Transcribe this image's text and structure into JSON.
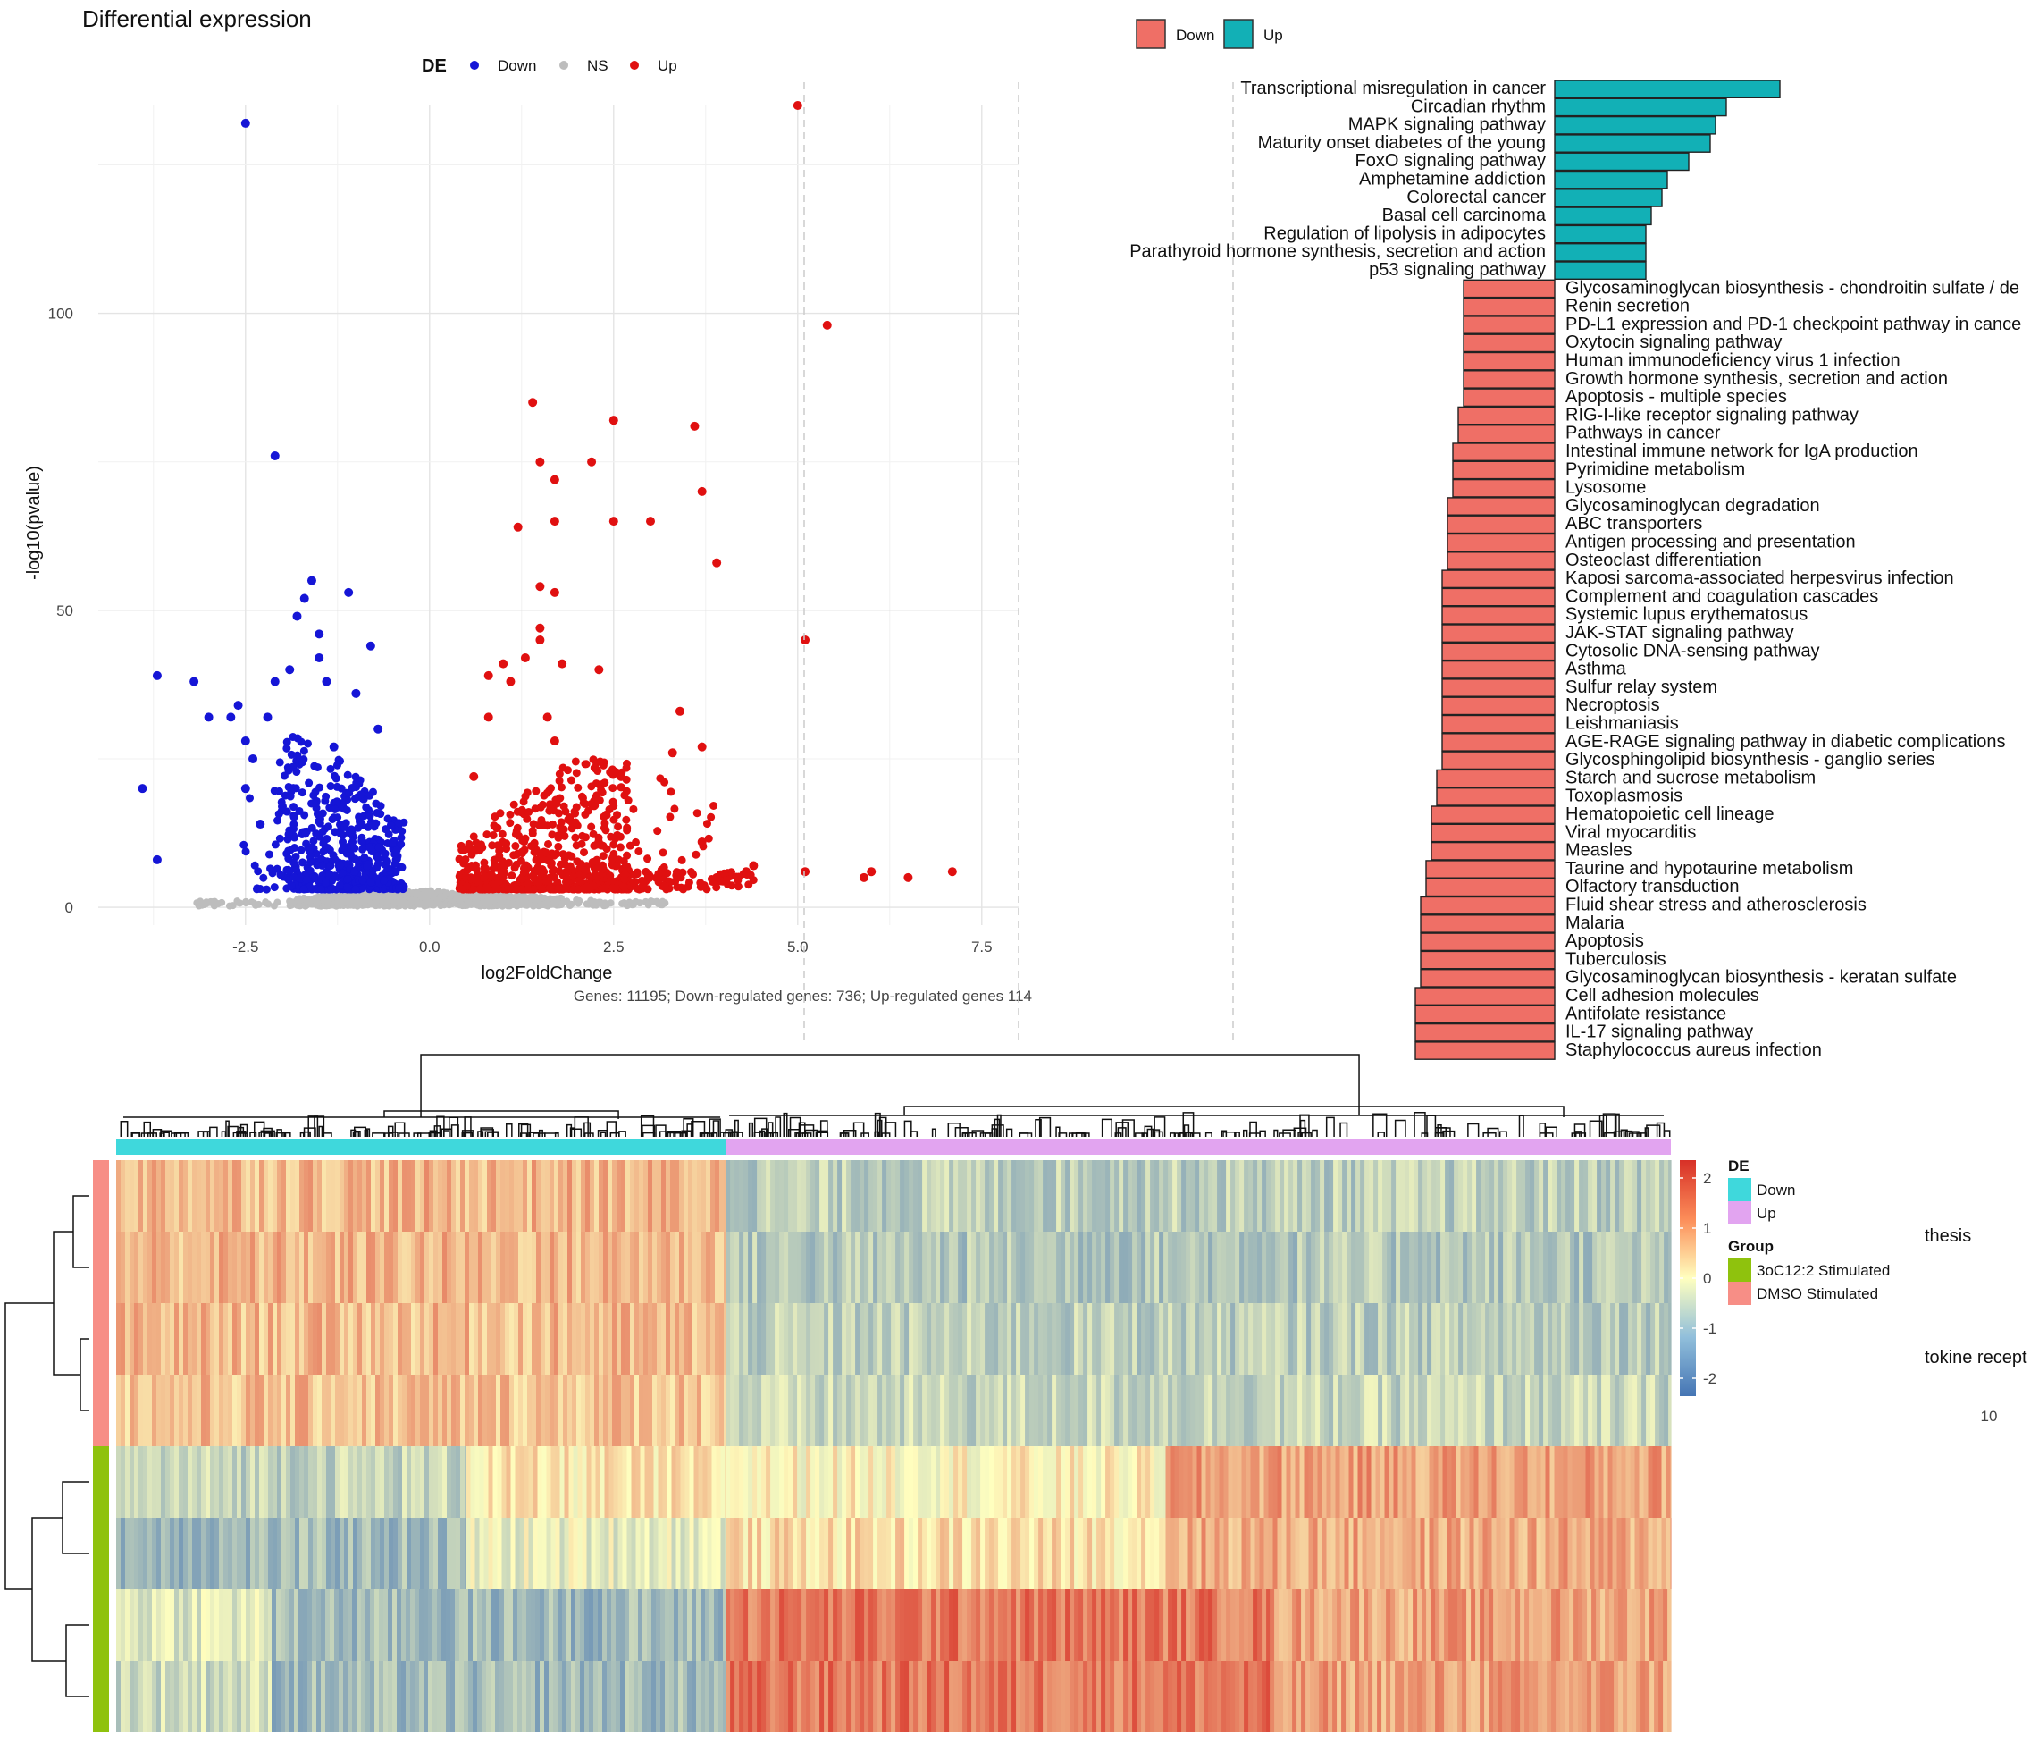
{
  "volcano": {
    "title": "Differential expression",
    "legend_title": "DE",
    "legend": [
      {
        "name": "Down",
        "color": "#1515d6"
      },
      {
        "name": "NS",
        "color": "#bdbdbd"
      },
      {
        "name": "Up",
        "color": "#e01010"
      }
    ],
    "xlabel": "log2FoldChange",
    "ylabel": "-log10(pvalue)",
    "caption": "Genes: 11195; Down-regulated genes: 736; Up-regulated genes 114"
  },
  "pathways": {
    "legend": [
      {
        "name": "Down",
        "color": "#ef6f66"
      },
      {
        "name": "Up",
        "color": "#12b0b6"
      }
    ],
    "axis_tick": "10",
    "right_fragments": [
      "thesis",
      "tokine recept"
    ]
  },
  "heatmap": {
    "legend_de_title": "DE",
    "legend_de": [
      {
        "name": "Down",
        "color": "#3fd8dc"
      },
      {
        "name": "Up",
        "color": "#e2a4f0"
      }
    ],
    "legend_group_title": "Group",
    "legend_group": [
      {
        "name": "3oC12:2 Stimulated",
        "color": "#8fc20d"
      },
      {
        "name": "DMSO Stimulated",
        "color": "#f78e86"
      }
    ],
    "colorbar_ticks": [
      "2",
      "1",
      "0",
      "-1",
      "-2"
    ]
  },
  "chart_data": [
    {
      "type": "scatter",
      "title": "Differential expression",
      "xlabel": "log2FoldChange",
      "ylabel": "-log10(pvalue)",
      "xlim": [
        -4.5,
        8.0
      ],
      "ylim": [
        -3,
        135
      ],
      "xticks": [
        -2.5,
        0.0,
        2.5,
        5.0,
        7.5
      ],
      "xtick_labels": [
        "-2.5",
        "0.0",
        "2.5",
        "5.0",
        "7.5"
      ],
      "yticks": [
        0,
        50,
        100
      ],
      "ytick_labels": [
        "0",
        "50",
        "100"
      ],
      "legend": "top",
      "grid": true,
      "series": [
        {
          "name": "Down",
          "color": "#1515d6",
          "points": [
            [
              -2.5,
              132
            ],
            [
              -2.1,
              76
            ],
            [
              -3.9,
              20
            ],
            [
              -3.7,
              39
            ],
            [
              -3.7,
              8
            ],
            [
              -3.2,
              38
            ],
            [
              -3.0,
              32
            ],
            [
              -2.7,
              32
            ],
            [
              -2.5,
              28
            ],
            [
              -2.5,
              20
            ],
            [
              -2.4,
              25
            ],
            [
              -2.2,
              32
            ],
            [
              -2.1,
              38
            ],
            [
              -1.9,
              40
            ],
            [
              -1.8,
              49
            ],
            [
              -1.7,
              52
            ],
            [
              -1.6,
              55
            ],
            [
              -1.5,
              46
            ],
            [
              -1.5,
              42
            ],
            [
              -1.4,
              38
            ],
            [
              -1.1,
              53
            ],
            [
              -0.8,
              44
            ],
            [
              -1.0,
              36
            ],
            [
              -2.6,
              34
            ],
            [
              -2.3,
              14
            ],
            [
              -2.0,
              17
            ],
            [
              -1.3,
              27
            ],
            [
              -0.7,
              30
            ]
          ]
        },
        {
          "name": "Up",
          "color": "#e01010",
          "points": [
            [
              5.0,
              135
            ],
            [
              5.4,
              98
            ],
            [
              1.4,
              85
            ],
            [
              2.5,
              82
            ],
            [
              3.6,
              81
            ],
            [
              1.5,
              75
            ],
            [
              2.2,
              75
            ],
            [
              1.7,
              72
            ],
            [
              3.7,
              70
            ],
            [
              1.2,
              64
            ],
            [
              1.7,
              65
            ],
            [
              2.5,
              65
            ],
            [
              3.0,
              65
            ],
            [
              3.9,
              58
            ],
            [
              1.5,
              54
            ],
            [
              1.7,
              53
            ],
            [
              5.1,
              45
            ],
            [
              1.5,
              47
            ],
            [
              1.5,
              45
            ],
            [
              2.3,
              40
            ],
            [
              0.8,
              39
            ],
            [
              1.0,
              41
            ],
            [
              1.1,
              38
            ],
            [
              1.3,
              42
            ],
            [
              1.8,
              41
            ],
            [
              3.4,
              33
            ],
            [
              0.8,
              32
            ],
            [
              1.6,
              32
            ],
            [
              3.3,
              26
            ],
            [
              3.7,
              27
            ],
            [
              1.7,
              28
            ],
            [
              0.6,
              22
            ],
            [
              2.6,
              22
            ],
            [
              3.7,
              11
            ],
            [
              4.4,
              7
            ],
            [
              6.5,
              5
            ],
            [
              7.1,
              6
            ],
            [
              6.0,
              6
            ],
            [
              5.9,
              5
            ],
            [
              5.1,
              6
            ],
            [
              4.3,
              6
            ],
            [
              3.9,
              5
            ]
          ]
        },
        {
          "name": "NS",
          "color": "#bdbdbd",
          "points": []
        }
      ]
    },
    {
      "type": "bar",
      "orientation": "horizontal",
      "legend": "top",
      "xlim": [
        -14.5,
        14.5
      ],
      "series": [
        {
          "name": "Up",
          "color": "#12b0b6",
          "items": [
            {
              "label": "Transcriptional misregulation in cancer",
              "value": 4.2
            },
            {
              "label": "Circadian rhythm",
              "value": 3.2
            },
            {
              "label": "MAPK signaling pathway",
              "value": 3.0
            },
            {
              "label": "Maturity onset diabetes of the young",
              "value": 2.9
            },
            {
              "label": "FoxO signaling pathway",
              "value": 2.5
            },
            {
              "label": "Amphetamine addiction",
              "value": 2.1
            },
            {
              "label": "Colorectal cancer",
              "value": 2.0
            },
            {
              "label": "Basal cell carcinoma",
              "value": 1.8
            },
            {
              "label": "Regulation of lipolysis in adipocytes",
              "value": 1.7
            },
            {
              "label": "Parathyroid hormone synthesis, secretion and action",
              "value": 1.7
            },
            {
              "label": "p53 signaling pathway",
              "value": 1.7
            }
          ]
        },
        {
          "name": "Down",
          "color": "#ef6f66",
          "items": [
            {
              "label": "Glycosaminoglycan biosynthesis - chondroitin sulfate / de",
              "value": -1.7
            },
            {
              "label": "Renin secretion",
              "value": -1.7
            },
            {
              "label": "PD-L1 expression and PD-1 checkpoint pathway in cance",
              "value": -1.7
            },
            {
              "label": "Oxytocin signaling pathway",
              "value": -1.7
            },
            {
              "label": "Human immunodeficiency virus 1 infection",
              "value": -1.7
            },
            {
              "label": "Growth hormone synthesis, secretion and action",
              "value": -1.7
            },
            {
              "label": "Apoptosis - multiple species",
              "value": -1.7
            },
            {
              "label": "RIG-I-like receptor signaling pathway",
              "value": -1.8
            },
            {
              "label": "Pathways in cancer",
              "value": -1.8
            },
            {
              "label": "Intestinal immune network for IgA production",
              "value": -1.9
            },
            {
              "label": "Pyrimidine metabolism",
              "value": -1.9
            },
            {
              "label": "Lysosome",
              "value": -1.9
            },
            {
              "label": "Glycosaminoglycan degradation",
              "value": -2.0
            },
            {
              "label": "ABC transporters",
              "value": -2.0
            },
            {
              "label": "Antigen processing and presentation",
              "value": -2.0
            },
            {
              "label": "Osteoclast differentiation",
              "value": -2.0
            },
            {
              "label": "Kaposi sarcoma-associated herpesvirus infection",
              "value": -2.1
            },
            {
              "label": "Complement and coagulation cascades",
              "value": -2.1
            },
            {
              "label": "Systemic lupus erythematosus",
              "value": -2.1
            },
            {
              "label": "JAK-STAT signaling pathway",
              "value": -2.1
            },
            {
              "label": "Cytosolic DNA-sensing pathway",
              "value": -2.1
            },
            {
              "label": "Asthma",
              "value": -2.1
            },
            {
              "label": "Sulfur relay system",
              "value": -2.1
            },
            {
              "label": "Necroptosis",
              "value": -2.1
            },
            {
              "label": "Leishmaniasis",
              "value": -2.1
            },
            {
              "label": "AGE-RAGE signaling pathway in diabetic complications",
              "value": -2.1
            },
            {
              "label": "Glycosphingolipid biosynthesis - ganglio series",
              "value": -2.1
            },
            {
              "label": "Starch and sucrose metabolism",
              "value": -2.2
            },
            {
              "label": "Toxoplasmosis",
              "value": -2.2
            },
            {
              "label": "Hematopoietic cell lineage",
              "value": -2.3
            },
            {
              "label": "Viral myocarditis",
              "value": -2.3
            },
            {
              "label": "Measles",
              "value": -2.3
            },
            {
              "label": "Taurine and hypotaurine metabolism",
              "value": -2.4
            },
            {
              "label": "Olfactory transduction",
              "value": -2.4
            },
            {
              "label": "Fluid shear stress and atherosclerosis",
              "value": -2.5
            },
            {
              "label": "Malaria",
              "value": -2.5
            },
            {
              "label": "Apoptosis",
              "value": -2.5
            },
            {
              "label": "Tuberculosis",
              "value": -2.5
            },
            {
              "label": "Glycosaminoglycan biosynthesis - keratan sulfate",
              "value": -2.5
            },
            {
              "label": "Cell adhesion molecules",
              "value": -2.6
            },
            {
              "label": "Antifolate resistance",
              "value": -2.6
            },
            {
              "label": "IL-17 signaling pathway",
              "value": -2.6
            },
            {
              "label": "Staphylococcus aureus infection",
              "value": -2.6
            }
          ]
        }
      ]
    },
    {
      "type": "heatmap",
      "color_scale": {
        "min": -2,
        "max": 2,
        "low": "#4575b4",
        "mid": "#ffffbf",
        "high": "#d73027"
      },
      "column_groups": [
        {
          "name": "Down",
          "fraction": 0.392
        },
        {
          "name": "Up",
          "fraction": 0.608
        }
      ],
      "rows": [
        {
          "group": "DMSO Stimulated",
          "segments": [
            [
              0.392,
              0.7
            ],
            [
              0.608,
              -0.7
            ]
          ]
        },
        {
          "group": "DMSO Stimulated",
          "segments": [
            [
              0.392,
              0.7
            ],
            [
              0.608,
              -0.8
            ]
          ]
        },
        {
          "group": "DMSO Stimulated",
          "segments": [
            [
              0.392,
              0.65
            ],
            [
              0.608,
              -0.7
            ]
          ]
        },
        {
          "group": "DMSO Stimulated",
          "segments": [
            [
              0.392,
              0.6
            ],
            [
              0.608,
              -0.6
            ]
          ]
        },
        {
          "group": "3oC12:2 Stimulated",
          "segments": [
            [
              0.225,
              -0.6
            ],
            [
              0.167,
              0.2
            ],
            [
              0.283,
              0.1
            ],
            [
              0.325,
              0.9
            ]
          ]
        },
        {
          "group": "3oC12:2 Stimulated",
          "segments": [
            [
              0.225,
              -1.0
            ],
            [
              0.167,
              -0.2
            ],
            [
              0.283,
              0.3
            ],
            [
              0.325,
              0.8
            ]
          ]
        },
        {
          "group": "3oC12:2 Stimulated",
          "segments": [
            [
              0.1,
              -0.3
            ],
            [
              0.292,
              -1.0
            ],
            [
              0.35,
              1.3
            ],
            [
              0.258,
              0.9
            ]
          ]
        },
        {
          "group": "3oC12:2 Stimulated",
          "segments": [
            [
              0.1,
              -0.5
            ],
            [
              0.292,
              -1.0
            ],
            [
              0.35,
              1.3
            ],
            [
              0.258,
              0.9
            ]
          ]
        }
      ]
    }
  ]
}
